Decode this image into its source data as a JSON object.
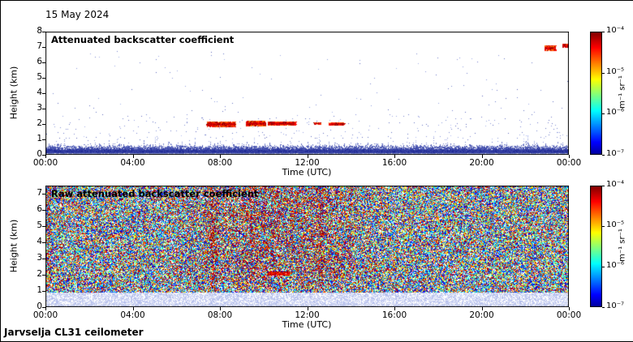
{
  "date_label": "15 May 2024",
  "footer_label": "Jarvselja CL31 ceilometer",
  "time_axis": {
    "label": "Time (UTC)",
    "ticks": [
      "00:00",
      "04:00",
      "08:00",
      "12:00",
      "16:00",
      "20:00",
      "00:00"
    ]
  },
  "colorbar": {
    "tick_labels": [
      "10⁻⁴",
      "10⁻⁵",
      "10⁻⁶",
      "10⁻⁷"
    ],
    "unit": "m⁻¹ sr⁻¹",
    "scale": "log",
    "min": "1e-7",
    "max": "1e-4",
    "colormap": "jet"
  },
  "chart_data": [
    {
      "type": "heatmap",
      "title": "Attenuated backscatter coefficient",
      "xlabel": "Time (UTC)",
      "ylabel": "Height (km)",
      "x_hours": [
        0,
        24
      ],
      "y_km": [
        0,
        8
      ],
      "y_ticks": [
        0,
        1,
        2,
        3,
        4,
        5,
        6,
        7,
        8
      ],
      "value_range": [
        "1e-7",
        "1e-4"
      ],
      "background": "white",
      "surface_layer": {
        "solid_km": 0.3,
        "top_km": 1.0,
        "description": "dense blue near-surface aerosol layer with intermittent speckle spikes up to ~1.5-2 km"
      },
      "clouds": [
        {
          "t": [
            7.4,
            8.7
          ],
          "h": [
            1.75,
            2.1
          ],
          "density": 0.8
        },
        {
          "t": [
            9.2,
            10.1
          ],
          "h": [
            1.8,
            2.15
          ],
          "density": 0.9
        },
        {
          "t": [
            10.2,
            11.5
          ],
          "h": [
            1.85,
            2.1
          ],
          "density": 1.0
        },
        {
          "t": [
            12.3,
            12.6
          ],
          "h": [
            1.9,
            2.05
          ],
          "density": 0.5
        },
        {
          "t": [
            13.0,
            13.7
          ],
          "h": [
            1.85,
            2.05
          ],
          "density": 0.8
        },
        {
          "t": [
            22.9,
            23.4
          ],
          "h": [
            6.7,
            7.05
          ],
          "density": 0.9
        },
        {
          "t": [
            23.7,
            24.0
          ],
          "h": [
            6.9,
            7.15
          ],
          "density": 0.7
        }
      ]
    },
    {
      "type": "heatmap",
      "title": "Raw attenuated backscatter coefficient",
      "xlabel": "Time (UTC)",
      "ylabel": "Height (km)",
      "x_hours": [
        0,
        24
      ],
      "y_km": [
        0,
        7.5
      ],
      "y_ticks": [
        0,
        1,
        2,
        3,
        4,
        5,
        6,
        7
      ],
      "value_range": [
        "1e-7",
        "1e-4"
      ],
      "noise": {
        "description": "full-field speckled noise in jet colors; enhanced orange/red signal aloft ~07:00-14:00 with vertical streaks; pale light-blue band below ~0.9 km",
        "enhanced_t": [
          7,
          14
        ],
        "enhanced_center": 10.8,
        "enhanced_width": 3.4,
        "pale_band_top_km": 0.9,
        "streak_count": 14
      },
      "cloud_streak": {
        "t": [
          10.2,
          11.2
        ],
        "h": [
          1.9,
          2.15
        ]
      }
    }
  ]
}
